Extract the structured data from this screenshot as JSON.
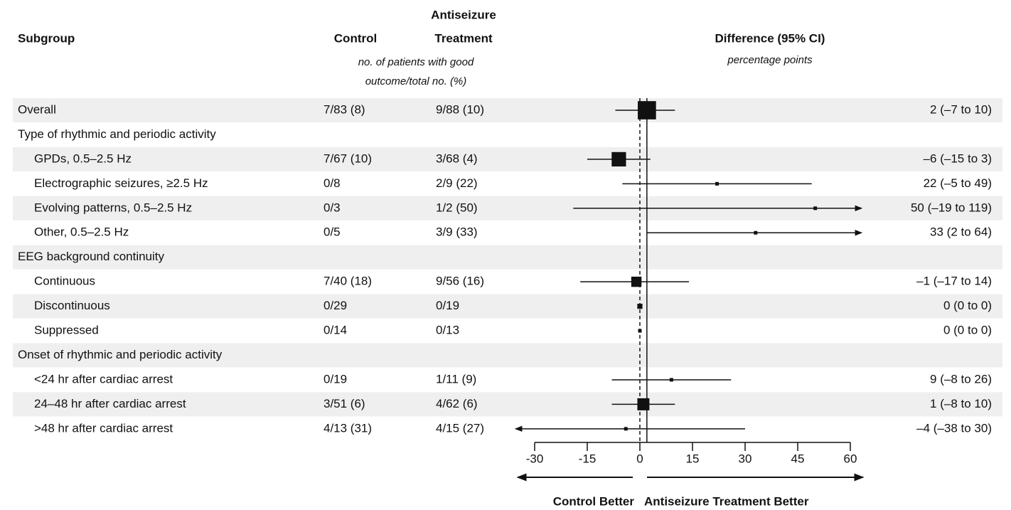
{
  "chart_data": {
    "type": "forest",
    "subgroup_header": "Subgroup",
    "control_header": "Control",
    "treatment_header": [
      "Antiseizure",
      "Treatment"
    ],
    "counts_note": [
      "no. of patients with good",
      "outcome/total no. (%)"
    ],
    "difference_header": "Difference (95% CI)",
    "units_note": "percentage points",
    "left_label": "Control Better",
    "right_label": "Antiseizure Treatment Better",
    "xlim": [
      -30,
      60
    ],
    "xticks": [
      -30,
      -15,
      0,
      15,
      30,
      45,
      60
    ],
    "rows": [
      {
        "subgroup": "Overall",
        "control": "7/83 (8)",
        "treatment": "9/88 (10)",
        "estimate": 2,
        "lo": -7,
        "hi": 10,
        "ci_label": "2 (–7 to 10)"
      },
      {
        "subgroup": "Type of rhythmic and periodic activity"
      },
      {
        "subgroup": "GPDs, 0.5–2.5 Hz",
        "indent": true,
        "control": "7/67 (10)",
        "treatment": "3/68 (4)",
        "estimate": -6,
        "lo": -15,
        "hi": 3,
        "ci_label": "–6 (–15 to 3)"
      },
      {
        "subgroup": "Electrographic seizures, ≥2.5 Hz",
        "indent": true,
        "control": "0/8",
        "treatment": "2/9 (22)",
        "estimate": 22,
        "lo": -5,
        "hi": 49,
        "ci_label": "22 (–5 to 49)"
      },
      {
        "subgroup": "Evolving patterns, 0.5–2.5 Hz",
        "indent": true,
        "control": "0/3",
        "treatment": "1/2 (50)",
        "estimate": 50,
        "lo": -19,
        "hi": 119,
        "ci_label": "50 (–19 to 119)"
      },
      {
        "subgroup": "Other, 0.5–2.5 Hz",
        "indent": true,
        "control": "0/5",
        "treatment": "3/9 (33)",
        "estimate": 33,
        "lo": 2,
        "hi": 64,
        "ci_label": "33 (2 to 64)"
      },
      {
        "subgroup": "EEG background continuity"
      },
      {
        "subgroup": "Continuous",
        "indent": true,
        "control": "7/40 (18)",
        "treatment": "9/56 (16)",
        "estimate": -1,
        "lo": -17,
        "hi": 14,
        "ci_label": "–1 (–17 to 14)"
      },
      {
        "subgroup": "Discontinuous",
        "indent": true,
        "control": "0/29",
        "treatment": "0/19",
        "estimate": 0,
        "lo": 0,
        "hi": 0,
        "ci_label": "0 (0 to 0)"
      },
      {
        "subgroup": "Suppressed",
        "indent": true,
        "control": "0/14",
        "treatment": "0/13",
        "estimate": 0,
        "lo": 0,
        "hi": 0,
        "ci_label": "0 (0 to 0)"
      },
      {
        "subgroup": "Onset of rhythmic and periodic activity"
      },
      {
        "subgroup": "<24 hr after cardiac arrest",
        "indent": true,
        "control": "0/19",
        "treatment": "1/11 (9)",
        "estimate": 9,
        "lo": -8,
        "hi": 26,
        "ci_label": "9 (–8 to 26)"
      },
      {
        "subgroup": "24–48 hr after cardiac arrest",
        "indent": true,
        "control": "3/51 (6)",
        "treatment": "4/62 (6)",
        "estimate": 1,
        "lo": -8,
        "hi": 10,
        "ci_label": "1 (–8 to 10)"
      },
      {
        "subgroup": ">48 hr after cardiac arrest",
        "indent": true,
        "control": "4/13 (31)",
        "treatment": "4/15 (27)",
        "estimate": -4,
        "lo": -38,
        "hi": 30,
        "ci_label": "–4 (–38 to 30)"
      }
    ]
  }
}
